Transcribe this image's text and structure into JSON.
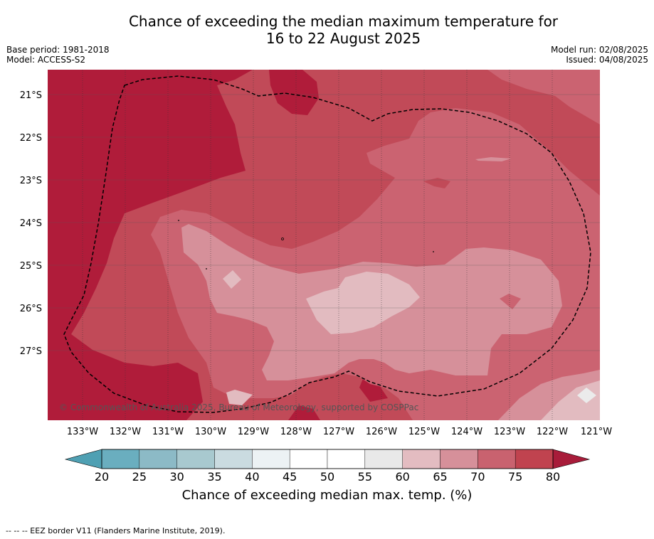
{
  "title": {
    "line1": "Chance of exceeding the median maximum temperature for",
    "line2": "16 to 22 August 2025"
  },
  "meta": {
    "base_period": "Base period: 1981-2018",
    "model": "Model: ACCESS-S2",
    "model_run": "Model run: 02/08/2025",
    "issued": "Issued: 04/08/2025"
  },
  "map": {
    "copyright": "© Commonwealth of Australia 2025, Bureau of Meteorology, supported by COSPPac",
    "lon_labels": [
      "133°W",
      "132°W",
      "131°W",
      "130°W",
      "129°W",
      "128°W",
      "127°W",
      "126°W",
      "125°W",
      "124°W",
      "123°W",
      "122°W",
      "121°W"
    ],
    "lat_labels": [
      "21°S",
      "22°S",
      "23°S",
      "24°S",
      "25°S",
      "26°S",
      "27°S"
    ],
    "colors": {
      "ge80": "#b01c3a",
      "75_80": "#c14a58",
      "70_75": "#cb6371",
      "65_70": "#d6909a",
      "60_65": "#e2bbc0",
      "55_60": "#ebebeb"
    }
  },
  "colorbar": {
    "ticks": [
      "20",
      "25",
      "30",
      "35",
      "40",
      "45",
      "50",
      "55",
      "60",
      "65",
      "70",
      "75",
      "80"
    ],
    "colors": [
      "#6aaebf",
      "#8cbac6",
      "#a8c9cf",
      "#cadbe0",
      "#ecf2f4",
      "#ffffff",
      "#ffffff",
      "#e9e9e9",
      "#e3bcc1",
      "#d6909a",
      "#c9626f",
      "#c0434f"
    ],
    "under_color": "#4fa0b3",
    "over_color": "#a81c3a",
    "label": "Chance of exceeding median max. temp. (%)"
  },
  "footnote": "-- -- -- EEZ border V11 (Flanders Marine Institute, 2019)."
}
